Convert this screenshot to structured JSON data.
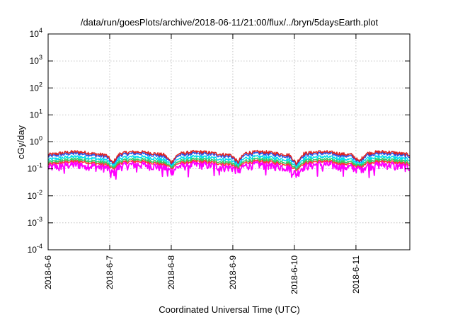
{
  "chart_data": {
    "type": "line",
    "title": "/data/run/goesPlots/archive/2018-06-11/21:00/flux/../bryn/5daysEarth.plot",
    "xlabel": "Coordinated Universal Time (UTC)",
    "ylabel": "cGy/day",
    "yscale": "log",
    "ylim": [
      0.0001,
      10000
    ],
    "xlim": [
      "2018-06-06",
      "2018-06-11 21:00"
    ],
    "grid": true,
    "y_ticks": [
      {
        "base": "10",
        "exp": "4"
      },
      {
        "base": "10",
        "exp": "3"
      },
      {
        "base": "10",
        "exp": "2"
      },
      {
        "base": "10",
        "exp": "1"
      },
      {
        "base": "10",
        "exp": "0"
      },
      {
        "base": "10",
        "exp": "-1"
      },
      {
        "base": "10",
        "exp": "-2"
      },
      {
        "base": "10",
        "exp": "-3"
      },
      {
        "base": "10",
        "exp": "-4"
      }
    ],
    "x_ticks": [
      "2018-6-6",
      "2018-6-7",
      "2018-6-8",
      "2018-6-9",
      "2018-6-10",
      "2018-6-11"
    ],
    "series": [
      {
        "color": "#ff00ff",
        "baseline": 0.13,
        "dips": [
          0.07,
          0.08,
          0.09,
          0.06,
          0.1
        ]
      },
      {
        "color": "#ff3333",
        "baseline": 0.17,
        "dips": [
          0.1,
          0.11,
          0.11,
          0.09,
          0.12
        ]
      },
      {
        "color": "#33cc66",
        "baseline": 0.2,
        "dips": [
          0.11,
          0.12,
          0.12,
          0.1,
          0.13
        ]
      },
      {
        "color": "#00ddee",
        "baseline": 0.25,
        "dips": [
          0.13,
          0.14,
          0.14,
          0.12,
          0.15
        ]
      },
      {
        "color": "#2255ee",
        "baseline": 0.33,
        "dips": [
          0.15,
          0.16,
          0.16,
          0.14,
          0.17
        ]
      },
      {
        "color": "#dd2222",
        "baseline": 0.38,
        "dips": [
          0.16,
          0.17,
          0.17,
          0.15,
          0.18
        ]
      }
    ]
  }
}
